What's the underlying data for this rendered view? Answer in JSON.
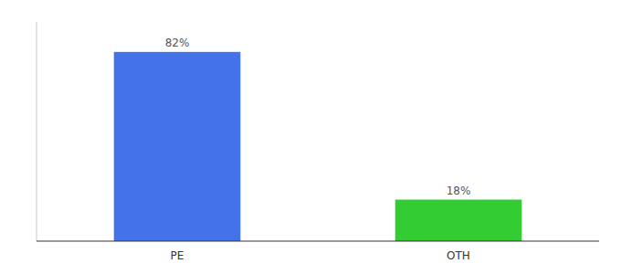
{
  "chart_data": {
    "type": "bar",
    "categories": [
      "PE",
      "OTH"
    ],
    "values": [
      82,
      18
    ],
    "value_labels": [
      "82%",
      "18%"
    ],
    "colors": [
      "#4472e8",
      "#33cc33"
    ],
    "ylim": [
      0,
      95
    ],
    "yticks": [],
    "data_labels": true,
    "tick_labels": "x"
  }
}
